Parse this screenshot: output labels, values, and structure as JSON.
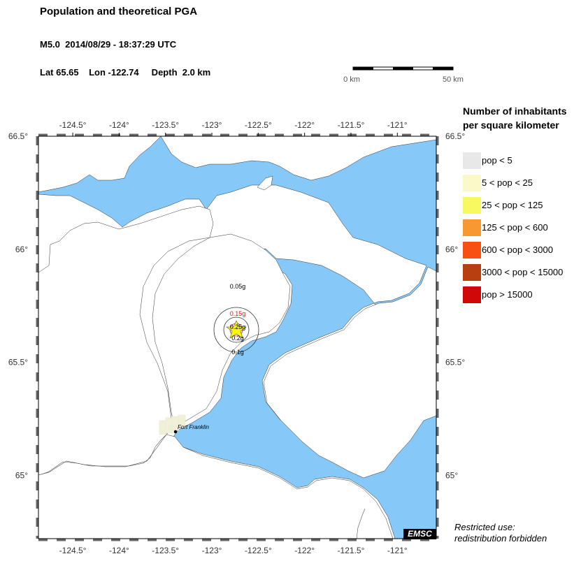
{
  "header": {
    "title": "Population and theoretical PGA",
    "subtitle": "M5.0  2014/08/29 - 18:37:29 UTC",
    "location": "Lat 65.65    Lon -122.74     Depth  2.0 km"
  },
  "scale_bar": {
    "start_label": "0 km",
    "end_label": "50 km"
  },
  "map": {
    "lon_range": [
      -124.87,
      -120.58
    ],
    "lat_range": [
      64.72,
      66.5
    ],
    "lon_ticks": [
      "-124.5°",
      "-124°",
      "-123.5°",
      "-123°",
      "-122.5°",
      "-122°",
      "-121.5°",
      "-121°"
    ],
    "lat_ticks": [
      "66.5°",
      "66°",
      "65.5°",
      "65°"
    ],
    "colors": {
      "water": "#86c8f8",
      "land": "#ffffff",
      "pga_ring": "#d81818",
      "epicenter": "#f8f800"
    },
    "pga_labels": {
      "g005": "0.05g",
      "g015": "0.15g",
      "g025": "0.25g",
      "g02": "0.2g",
      "g01": "0.1g"
    },
    "city": {
      "name": "Fort Franklin",
      "lat": 65.19,
      "lon": -123.43
    },
    "epicenter": {
      "lat": 65.65,
      "lon": -122.74
    }
  },
  "legend": {
    "title": "Number of inhabitants\nper square kilometer",
    "items": [
      {
        "label": "pop < 5",
        "color": "#e8e8e8"
      },
      {
        "label": "5 < pop < 25",
        "color": "#fafac8"
      },
      {
        "label": "25 < pop < 125",
        "color": "#f8f860"
      },
      {
        "label": "125 < pop < 600",
        "color": "#f89830"
      },
      {
        "label": "600 < pop < 3000",
        "color": "#f85010"
      },
      {
        "label": "3000 < pop < 15000",
        "color": "#b84010"
      },
      {
        "label": "pop > 15000",
        "color": "#d00808"
      }
    ]
  },
  "footer": {
    "restricted": "Restricted use:\nredistribution forbidden",
    "logo": "EMSC"
  }
}
